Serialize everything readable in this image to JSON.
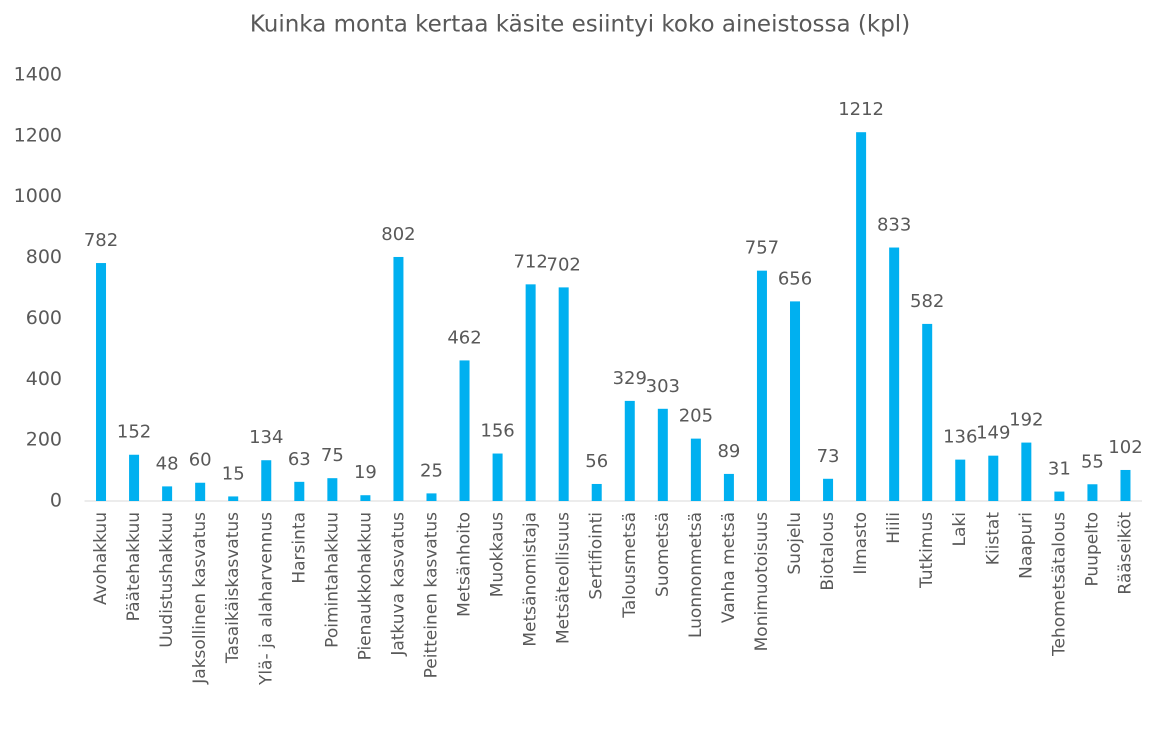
{
  "chart_data": {
    "type": "bar",
    "title": "Kuinka monta kertaa käsite esiintyi koko aineistossa (kpl)",
    "categories": [
      "Avohakkuu",
      "Päätehakkuu",
      "Uudistushakkuu",
      "Jaksollinen kasvatus",
      "Tasaikäiskasvatus",
      "Ylä- ja alaharvennus",
      "Harsinta",
      "Poimintahakkuu",
      "Pienaukkohakkuu",
      "Jatkuva kasvatus",
      "Peitteinen kasvatus",
      "Metsänhoito",
      "Muokkaus",
      "Metsänomistaja",
      "Metsäteollisuus",
      "Sertifiointi",
      "Talousmetsä",
      "Suometsä",
      "Luonnonmetsä",
      "Vanha metsä",
      "Monimuotoisuus",
      "Suojelu",
      "Biotalous",
      "Ilmasto",
      "Hiili",
      "Tutkimus",
      "Laki",
      "Kiistat",
      "Naapuri",
      "Tehometsätalous",
      "Puupelto",
      "Rääseiköt"
    ],
    "values": [
      782,
      152,
      48,
      60,
      15,
      134,
      63,
      75,
      19,
      802,
      25,
      462,
      156,
      712,
      702,
      56,
      329,
      303,
      205,
      89,
      757,
      656,
      73,
      1212,
      833,
      582,
      136,
      149,
      192,
      31,
      55,
      102
    ],
    "color": "#00b0f0",
    "ylim": [
      0,
      1400
    ],
    "yticks": [
      0,
      200,
      400,
      600,
      800,
      1000,
      1200,
      1400
    ],
    "grid": false
  }
}
